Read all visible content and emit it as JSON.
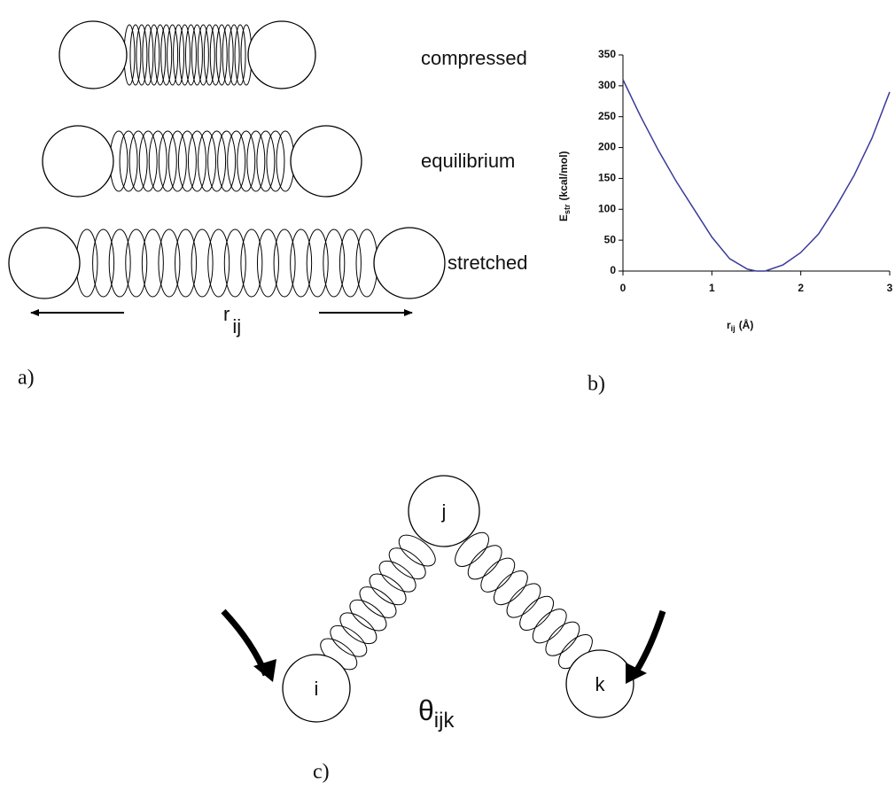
{
  "panel_a": {
    "labels": [
      "compressed",
      "equilibrium",
      "stretched"
    ],
    "distance": {
      "base": "r",
      "sub": "ij"
    },
    "caption": "a)"
  },
  "chart_data": {
    "type": "line",
    "caption": "b)",
    "x_label": {
      "base": "r",
      "sub": "ij",
      "unit": "(Å)"
    },
    "y_label": {
      "base": "E",
      "sub": "str",
      "unit": "(kcal/mol)"
    },
    "x": [
      0,
      0.2,
      0.4,
      0.6,
      0.8,
      1.0,
      1.2,
      1.4,
      1.5,
      1.6,
      1.8,
      2.0,
      2.2,
      2.4,
      2.6,
      2.8,
      3.0
    ],
    "values": [
      310,
      250,
      195,
      145,
      100,
      55,
      20,
      3,
      0,
      0,
      10,
      30,
      60,
      105,
      155,
      215,
      290
    ],
    "color": "#3a3a9a",
    "xlim": [
      0,
      3
    ],
    "xticks": [
      0,
      1,
      2,
      3
    ],
    "ylim": [
      0,
      350
    ],
    "yticks": [
      0,
      50,
      100,
      150,
      200,
      250,
      300,
      350
    ]
  },
  "panel_c": {
    "atoms": [
      "i",
      "j",
      "k"
    ],
    "angle": {
      "base": "θ",
      "sub": "ijk"
    },
    "caption": "c)"
  }
}
